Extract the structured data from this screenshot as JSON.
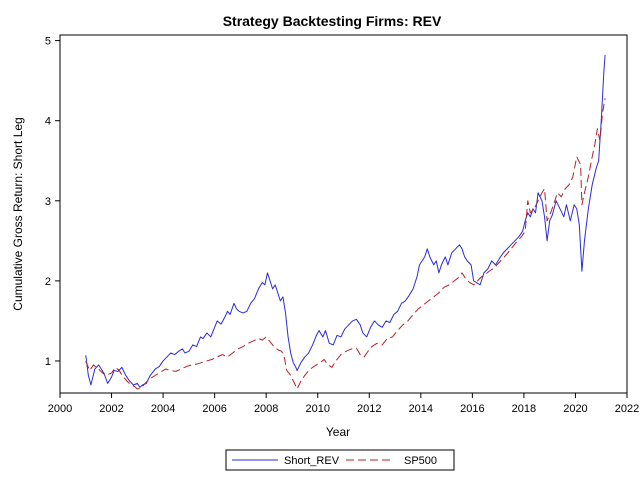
{
  "chart_data": {
    "type": "line",
    "title": "Strategy Backtesting  Firms: REV",
    "xlabel": "Year",
    "ylabel": "Cumulative Gross Return: Short Leg",
    "xlim": [
      2000,
      2022
    ],
    "ylim": [
      0.6,
      5.07
    ],
    "x_ticks": [
      "2000",
      "2002",
      "2004",
      "2006",
      "2008",
      "2010",
      "2012",
      "2014",
      "2016",
      "2018",
      "2020",
      "2022"
    ],
    "y_ticks": [
      "1",
      "2",
      "3",
      "4",
      "5"
    ],
    "grid": false,
    "legend_position": "bottom",
    "series": [
      {
        "name": "Short_REV",
        "color": "#2b2bd9",
        "style": "solid",
        "points": [
          [
            2001.0,
            1.07
          ],
          [
            2001.1,
            0.82
          ],
          [
            2001.2,
            0.7
          ],
          [
            2001.35,
            0.9
          ],
          [
            2001.5,
            0.95
          ],
          [
            2001.7,
            0.85
          ],
          [
            2001.85,
            0.72
          ],
          [
            2002.0,
            0.8
          ],
          [
            2002.1,
            0.88
          ],
          [
            2002.25,
            0.87
          ],
          [
            2002.4,
            0.92
          ],
          [
            2002.55,
            0.82
          ],
          [
            2002.7,
            0.75
          ],
          [
            2002.85,
            0.7
          ],
          [
            2003.0,
            0.72
          ],
          [
            2003.1,
            0.67
          ],
          [
            2003.2,
            0.7
          ],
          [
            2003.35,
            0.72
          ],
          [
            2003.5,
            0.82
          ],
          [
            2003.7,
            0.9
          ],
          [
            2003.85,
            0.93
          ],
          [
            2004.0,
            1.0
          ],
          [
            2004.15,
            1.05
          ],
          [
            2004.3,
            1.1
          ],
          [
            2004.45,
            1.08
          ],
          [
            2004.6,
            1.12
          ],
          [
            2004.75,
            1.15
          ],
          [
            2004.85,
            1.1
          ],
          [
            2005.0,
            1.12
          ],
          [
            2005.15,
            1.2
          ],
          [
            2005.3,
            1.18
          ],
          [
            2005.45,
            1.3
          ],
          [
            2005.55,
            1.28
          ],
          [
            2005.7,
            1.35
          ],
          [
            2005.85,
            1.3
          ],
          [
            2006.0,
            1.42
          ],
          [
            2006.1,
            1.5
          ],
          [
            2006.25,
            1.46
          ],
          [
            2006.4,
            1.55
          ],
          [
            2006.5,
            1.62
          ],
          [
            2006.6,
            1.58
          ],
          [
            2006.75,
            1.72
          ],
          [
            2006.85,
            1.65
          ],
          [
            2006.95,
            1.62
          ],
          [
            2007.1,
            1.6
          ],
          [
            2007.25,
            1.62
          ],
          [
            2007.4,
            1.72
          ],
          [
            2007.55,
            1.78
          ],
          [
            2007.7,
            1.9
          ],
          [
            2007.85,
            1.98
          ],
          [
            2007.95,
            1.95
          ],
          [
            2008.05,
            2.1
          ],
          [
            2008.15,
            2.0
          ],
          [
            2008.25,
            1.9
          ],
          [
            2008.35,
            1.95
          ],
          [
            2008.45,
            1.85
          ],
          [
            2008.55,
            1.75
          ],
          [
            2008.65,
            1.8
          ],
          [
            2008.75,
            1.6
          ],
          [
            2008.85,
            1.3
          ],
          [
            2008.95,
            1.1
          ],
          [
            2009.05,
            0.98
          ],
          [
            2009.15,
            0.92
          ],
          [
            2009.2,
            0.88
          ],
          [
            2009.35,
            0.98
          ],
          [
            2009.5,
            1.05
          ],
          [
            2009.65,
            1.1
          ],
          [
            2009.8,
            1.2
          ],
          [
            2009.95,
            1.32
          ],
          [
            2010.05,
            1.38
          ],
          [
            2010.2,
            1.3
          ],
          [
            2010.3,
            1.38
          ],
          [
            2010.45,
            1.22
          ],
          [
            2010.6,
            1.2
          ],
          [
            2010.75,
            1.32
          ],
          [
            2010.9,
            1.3
          ],
          [
            2011.05,
            1.4
          ],
          [
            2011.2,
            1.45
          ],
          [
            2011.35,
            1.5
          ],
          [
            2011.5,
            1.52
          ],
          [
            2011.65,
            1.45
          ],
          [
            2011.75,
            1.35
          ],
          [
            2011.9,
            1.3
          ],
          [
            2012.05,
            1.42
          ],
          [
            2012.2,
            1.5
          ],
          [
            2012.35,
            1.45
          ],
          [
            2012.5,
            1.42
          ],
          [
            2012.65,
            1.5
          ],
          [
            2012.8,
            1.48
          ],
          [
            2012.95,
            1.58
          ],
          [
            2013.1,
            1.62
          ],
          [
            2013.25,
            1.72
          ],
          [
            2013.4,
            1.75
          ],
          [
            2013.55,
            1.82
          ],
          [
            2013.7,
            1.9
          ],
          [
            2013.85,
            2.05
          ],
          [
            2013.95,
            2.2
          ],
          [
            2014.05,
            2.25
          ],
          [
            2014.15,
            2.3
          ],
          [
            2014.25,
            2.4
          ],
          [
            2014.35,
            2.3
          ],
          [
            2014.5,
            2.2
          ],
          [
            2014.6,
            2.25
          ],
          [
            2014.7,
            2.1
          ],
          [
            2014.8,
            2.2
          ],
          [
            2014.95,
            2.3
          ],
          [
            2015.05,
            2.2
          ],
          [
            2015.2,
            2.35
          ],
          [
            2015.35,
            2.4
          ],
          [
            2015.5,
            2.45
          ],
          [
            2015.6,
            2.4
          ],
          [
            2015.7,
            2.3
          ],
          [
            2015.8,
            2.25
          ],
          [
            2015.95,
            2.2
          ],
          [
            2016.05,
            2.0
          ],
          [
            2016.15,
            1.98
          ],
          [
            2016.3,
            1.95
          ],
          [
            2016.45,
            2.1
          ],
          [
            2016.6,
            2.15
          ],
          [
            2016.75,
            2.25
          ],
          [
            2016.9,
            2.2
          ],
          [
            2017.05,
            2.28
          ],
          [
            2017.2,
            2.35
          ],
          [
            2017.35,
            2.4
          ],
          [
            2017.5,
            2.45
          ],
          [
            2017.65,
            2.5
          ],
          [
            2017.8,
            2.55
          ],
          [
            2017.95,
            2.62
          ],
          [
            2018.05,
            2.75
          ],
          [
            2018.15,
            2.85
          ],
          [
            2018.25,
            2.8
          ],
          [
            2018.35,
            2.9
          ],
          [
            2018.45,
            2.85
          ],
          [
            2018.55,
            3.1
          ],
          [
            2018.7,
            3.0
          ],
          [
            2018.8,
            2.8
          ],
          [
            2018.9,
            2.5
          ],
          [
            2019.0,
            2.75
          ],
          [
            2019.1,
            2.82
          ],
          [
            2019.25,
            3.0
          ],
          [
            2019.4,
            2.9
          ],
          [
            2019.55,
            2.8
          ],
          [
            2019.65,
            2.95
          ],
          [
            2019.8,
            2.75
          ],
          [
            2019.95,
            2.95
          ],
          [
            2020.05,
            2.9
          ],
          [
            2020.15,
            2.7
          ],
          [
            2020.25,
            2.12
          ],
          [
            2020.35,
            2.5
          ],
          [
            2020.5,
            2.9
          ],
          [
            2020.65,
            3.2
          ],
          [
            2020.8,
            3.4
          ],
          [
            2020.9,
            3.5
          ],
          [
            2021.0,
            4.0
          ],
          [
            2021.1,
            4.6
          ],
          [
            2021.15,
            4.82
          ]
        ]
      },
      {
        "name": "SP500",
        "color": "#b0202c",
        "style": "dashed",
        "points": [
          [
            2001.0,
            1.0
          ],
          [
            2001.15,
            0.88
          ],
          [
            2001.3,
            0.95
          ],
          [
            2001.5,
            0.9
          ],
          [
            2001.65,
            0.85
          ],
          [
            2001.8,
            0.82
          ],
          [
            2002.0,
            0.85
          ],
          [
            2002.15,
            0.92
          ],
          [
            2002.3,
            0.88
          ],
          [
            2002.45,
            0.8
          ],
          [
            2002.6,
            0.75
          ],
          [
            2002.75,
            0.7
          ],
          [
            2002.9,
            0.68
          ],
          [
            2003.0,
            0.65
          ],
          [
            2003.15,
            0.66
          ],
          [
            2003.3,
            0.72
          ],
          [
            2003.5,
            0.78
          ],
          [
            2003.7,
            0.82
          ],
          [
            2003.9,
            0.86
          ],
          [
            2004.1,
            0.9
          ],
          [
            2004.3,
            0.88
          ],
          [
            2004.5,
            0.87
          ],
          [
            2004.7,
            0.9
          ],
          [
            2004.9,
            0.93
          ],
          [
            2005.1,
            0.95
          ],
          [
            2005.3,
            0.96
          ],
          [
            2005.5,
            0.98
          ],
          [
            2005.7,
            1.0
          ],
          [
            2005.9,
            1.02
          ],
          [
            2006.1,
            1.05
          ],
          [
            2006.3,
            1.08
          ],
          [
            2006.5,
            1.05
          ],
          [
            2006.7,
            1.1
          ],
          [
            2006.9,
            1.15
          ],
          [
            2007.1,
            1.18
          ],
          [
            2007.3,
            1.22
          ],
          [
            2007.5,
            1.25
          ],
          [
            2007.7,
            1.28
          ],
          [
            2007.85,
            1.26
          ],
          [
            2008.0,
            1.3
          ],
          [
            2008.15,
            1.24
          ],
          [
            2008.3,
            1.18
          ],
          [
            2008.45,
            1.14
          ],
          [
            2008.6,
            1.12
          ],
          [
            2008.7,
            1.05
          ],
          [
            2008.8,
            0.88
          ],
          [
            2008.95,
            0.82
          ],
          [
            2009.1,
            0.72
          ],
          [
            2009.2,
            0.65
          ],
          [
            2009.35,
            0.75
          ],
          [
            2009.5,
            0.82
          ],
          [
            2009.65,
            0.88
          ],
          [
            2009.8,
            0.92
          ],
          [
            2009.95,
            0.95
          ],
          [
            2010.1,
            0.98
          ],
          [
            2010.25,
            1.02
          ],
          [
            2010.4,
            0.95
          ],
          [
            2010.55,
            0.92
          ],
          [
            2010.7,
            1.0
          ],
          [
            2010.9,
            1.08
          ],
          [
            2011.1,
            1.12
          ],
          [
            2011.3,
            1.15
          ],
          [
            2011.5,
            1.16
          ],
          [
            2011.65,
            1.08
          ],
          [
            2011.8,
            1.05
          ],
          [
            2011.95,
            1.12
          ],
          [
            2012.1,
            1.18
          ],
          [
            2012.3,
            1.22
          ],
          [
            2012.5,
            1.2
          ],
          [
            2012.7,
            1.28
          ],
          [
            2012.9,
            1.3
          ],
          [
            2013.1,
            1.38
          ],
          [
            2013.3,
            1.45
          ],
          [
            2013.5,
            1.5
          ],
          [
            2013.7,
            1.58
          ],
          [
            2013.9,
            1.65
          ],
          [
            2014.1,
            1.7
          ],
          [
            2014.3,
            1.75
          ],
          [
            2014.5,
            1.8
          ],
          [
            2014.7,
            1.85
          ],
          [
            2014.9,
            1.92
          ],
          [
            2015.1,
            1.95
          ],
          [
            2015.3,
            2.0
          ],
          [
            2015.5,
            2.05
          ],
          [
            2015.6,
            2.1
          ],
          [
            2015.75,
            2.02
          ],
          [
            2015.9,
            1.98
          ],
          [
            2016.05,
            1.95
          ],
          [
            2016.2,
            2.0
          ],
          [
            2016.35,
            2.05
          ],
          [
            2016.5,
            2.08
          ],
          [
            2016.65,
            2.12
          ],
          [
            2016.8,
            2.15
          ],
          [
            2016.95,
            2.2
          ],
          [
            2017.1,
            2.25
          ],
          [
            2017.3,
            2.32
          ],
          [
            2017.5,
            2.4
          ],
          [
            2017.7,
            2.48
          ],
          [
            2017.9,
            2.55
          ],
          [
            2018.05,
            2.62
          ],
          [
            2018.15,
            3.0
          ],
          [
            2018.25,
            2.85
          ],
          [
            2018.4,
            2.9
          ],
          [
            2018.55,
            3.0
          ],
          [
            2018.7,
            3.1
          ],
          [
            2018.8,
            3.15
          ],
          [
            2018.9,
            2.75
          ],
          [
            2019.0,
            2.82
          ],
          [
            2019.15,
            2.95
          ],
          [
            2019.3,
            3.1
          ],
          [
            2019.45,
            3.05
          ],
          [
            2019.6,
            3.15
          ],
          [
            2019.75,
            3.2
          ],
          [
            2019.9,
            3.3
          ],
          [
            2020.05,
            3.55
          ],
          [
            2020.2,
            3.45
          ],
          [
            2020.25,
            2.95
          ],
          [
            2020.35,
            3.1
          ],
          [
            2020.5,
            3.3
          ],
          [
            2020.65,
            3.55
          ],
          [
            2020.75,
            3.7
          ],
          [
            2020.85,
            3.9
          ],
          [
            2020.95,
            3.75
          ],
          [
            2021.05,
            4.1
          ],
          [
            2021.15,
            4.28
          ]
        ]
      }
    ]
  }
}
